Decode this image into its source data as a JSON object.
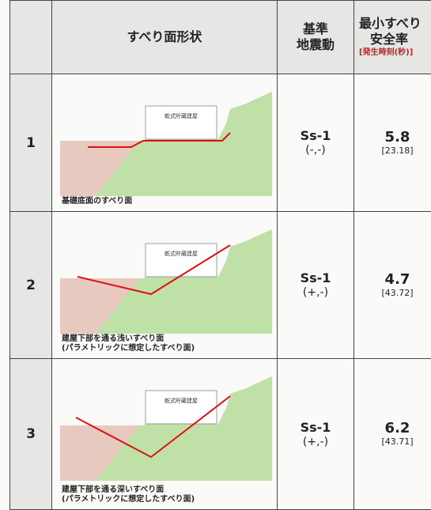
{
  "table": {
    "header": {
      "shape": "すべり面形状",
      "motion": [
        "基準",
        "地震動"
      ],
      "factor": [
        "最小すべり",
        "安全率"
      ],
      "time": "[発生時刻(秒)]"
    },
    "rows": [
      {
        "no": "1",
        "building": "乾式貯蔵建屋",
        "caption": [
          "基礎底面のすべり面"
        ],
        "motion": "Ss-1",
        "sign": "(-,-)",
        "factor": "5.8",
        "time": "[23.18]"
      },
      {
        "no": "2",
        "building": "乾式貯蔵建屋",
        "caption": [
          "建屋下部を通る浅いすべり面",
          "(パラメトリックに想定したすべり面)"
        ],
        "motion": "Ss-1",
        "sign": "(+,-)",
        "factor": "4.7",
        "time": "[43.72]"
      },
      {
        "no": "3",
        "building": "乾式貯蔵建屋",
        "caption": [
          "建屋下部を通る深いすべり面",
          "(パラメトリックに想定したすべり面)"
        ],
        "motion": "Ss-1",
        "sign": "(+,-)",
        "factor": "6.2",
        "time": "[43.71]"
      }
    ]
  }
}
